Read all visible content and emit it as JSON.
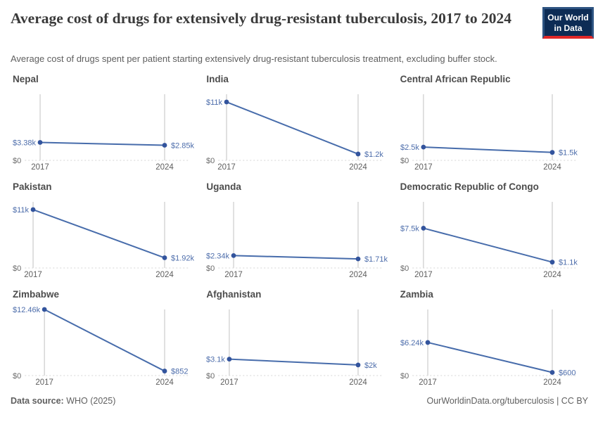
{
  "header": {
    "title": "Average cost of drugs for extensively drug-resistant tuberculosis, 2017 to 2024",
    "subtitle": "Average cost of drugs spent per patient starting extensively drug-resistant tuberculosis treatment, excluding buffer stock.",
    "logo": {
      "line1": "Our World",
      "line2": "in Data"
    }
  },
  "footer": {
    "source_label": "Data source:",
    "source_value": " WHO (2025)",
    "rights": "OurWorldinData.org/tuberculosis | CC BY"
  },
  "colors": {
    "line": "#476cab",
    "dot": "#33549d",
    "value_label": "#4d6dab",
    "zero_label": "#6b6b6b",
    "year_label": "#5e5e5e",
    "gridline": "#c2c2c2",
    "baseline": "#d6d6d6",
    "title_text": "#3a3a3a",
    "logo_bg": "#0d2c55",
    "logo_border": "#2d5381",
    "accent_red": "#e02828"
  },
  "chart_data": {
    "type": "line",
    "x": [
      2017,
      2024
    ],
    "ylim": [
      0,
      12460
    ],
    "unit": "US$",
    "grid": "x-gridlines and dotted zero baseline",
    "legend_position": "none",
    "axis": {
      "zero_label": "$0",
      "x_labels": [
        "2017",
        "2024"
      ]
    },
    "series": [
      {
        "name": "Nepal",
        "values": [
          3380,
          2850
        ],
        "labels": [
          "$3.38k",
          "$2.85k"
        ]
      },
      {
        "name": "India",
        "values": [
          11000,
          1200
        ],
        "labels": [
          "$11k",
          "$1.2k"
        ]
      },
      {
        "name": "Central African Republic",
        "values": [
          2500,
          1500
        ],
        "labels": [
          "$2.5k",
          "$1.5k"
        ]
      },
      {
        "name": "Pakistan",
        "values": [
          11000,
          1920
        ],
        "labels": [
          "$11k",
          "$1.92k"
        ]
      },
      {
        "name": "Uganda",
        "values": [
          2340,
          1710
        ],
        "labels": [
          "$2.34k",
          "$1.71k"
        ]
      },
      {
        "name": "Democratic Republic of Congo",
        "values": [
          7500,
          1100
        ],
        "labels": [
          "$7.5k",
          "$1.1k"
        ]
      },
      {
        "name": "Zimbabwe",
        "values": [
          12460,
          852
        ],
        "labels": [
          "$12.46k",
          "$852"
        ]
      },
      {
        "name": "Afghanistan",
        "values": [
          3100,
          2000
        ],
        "labels": [
          "$3.1k",
          "$2k"
        ]
      },
      {
        "name": "Zambia",
        "values": [
          6240,
          600
        ],
        "labels": [
          "$6.24k",
          "$600"
        ]
      }
    ]
  }
}
